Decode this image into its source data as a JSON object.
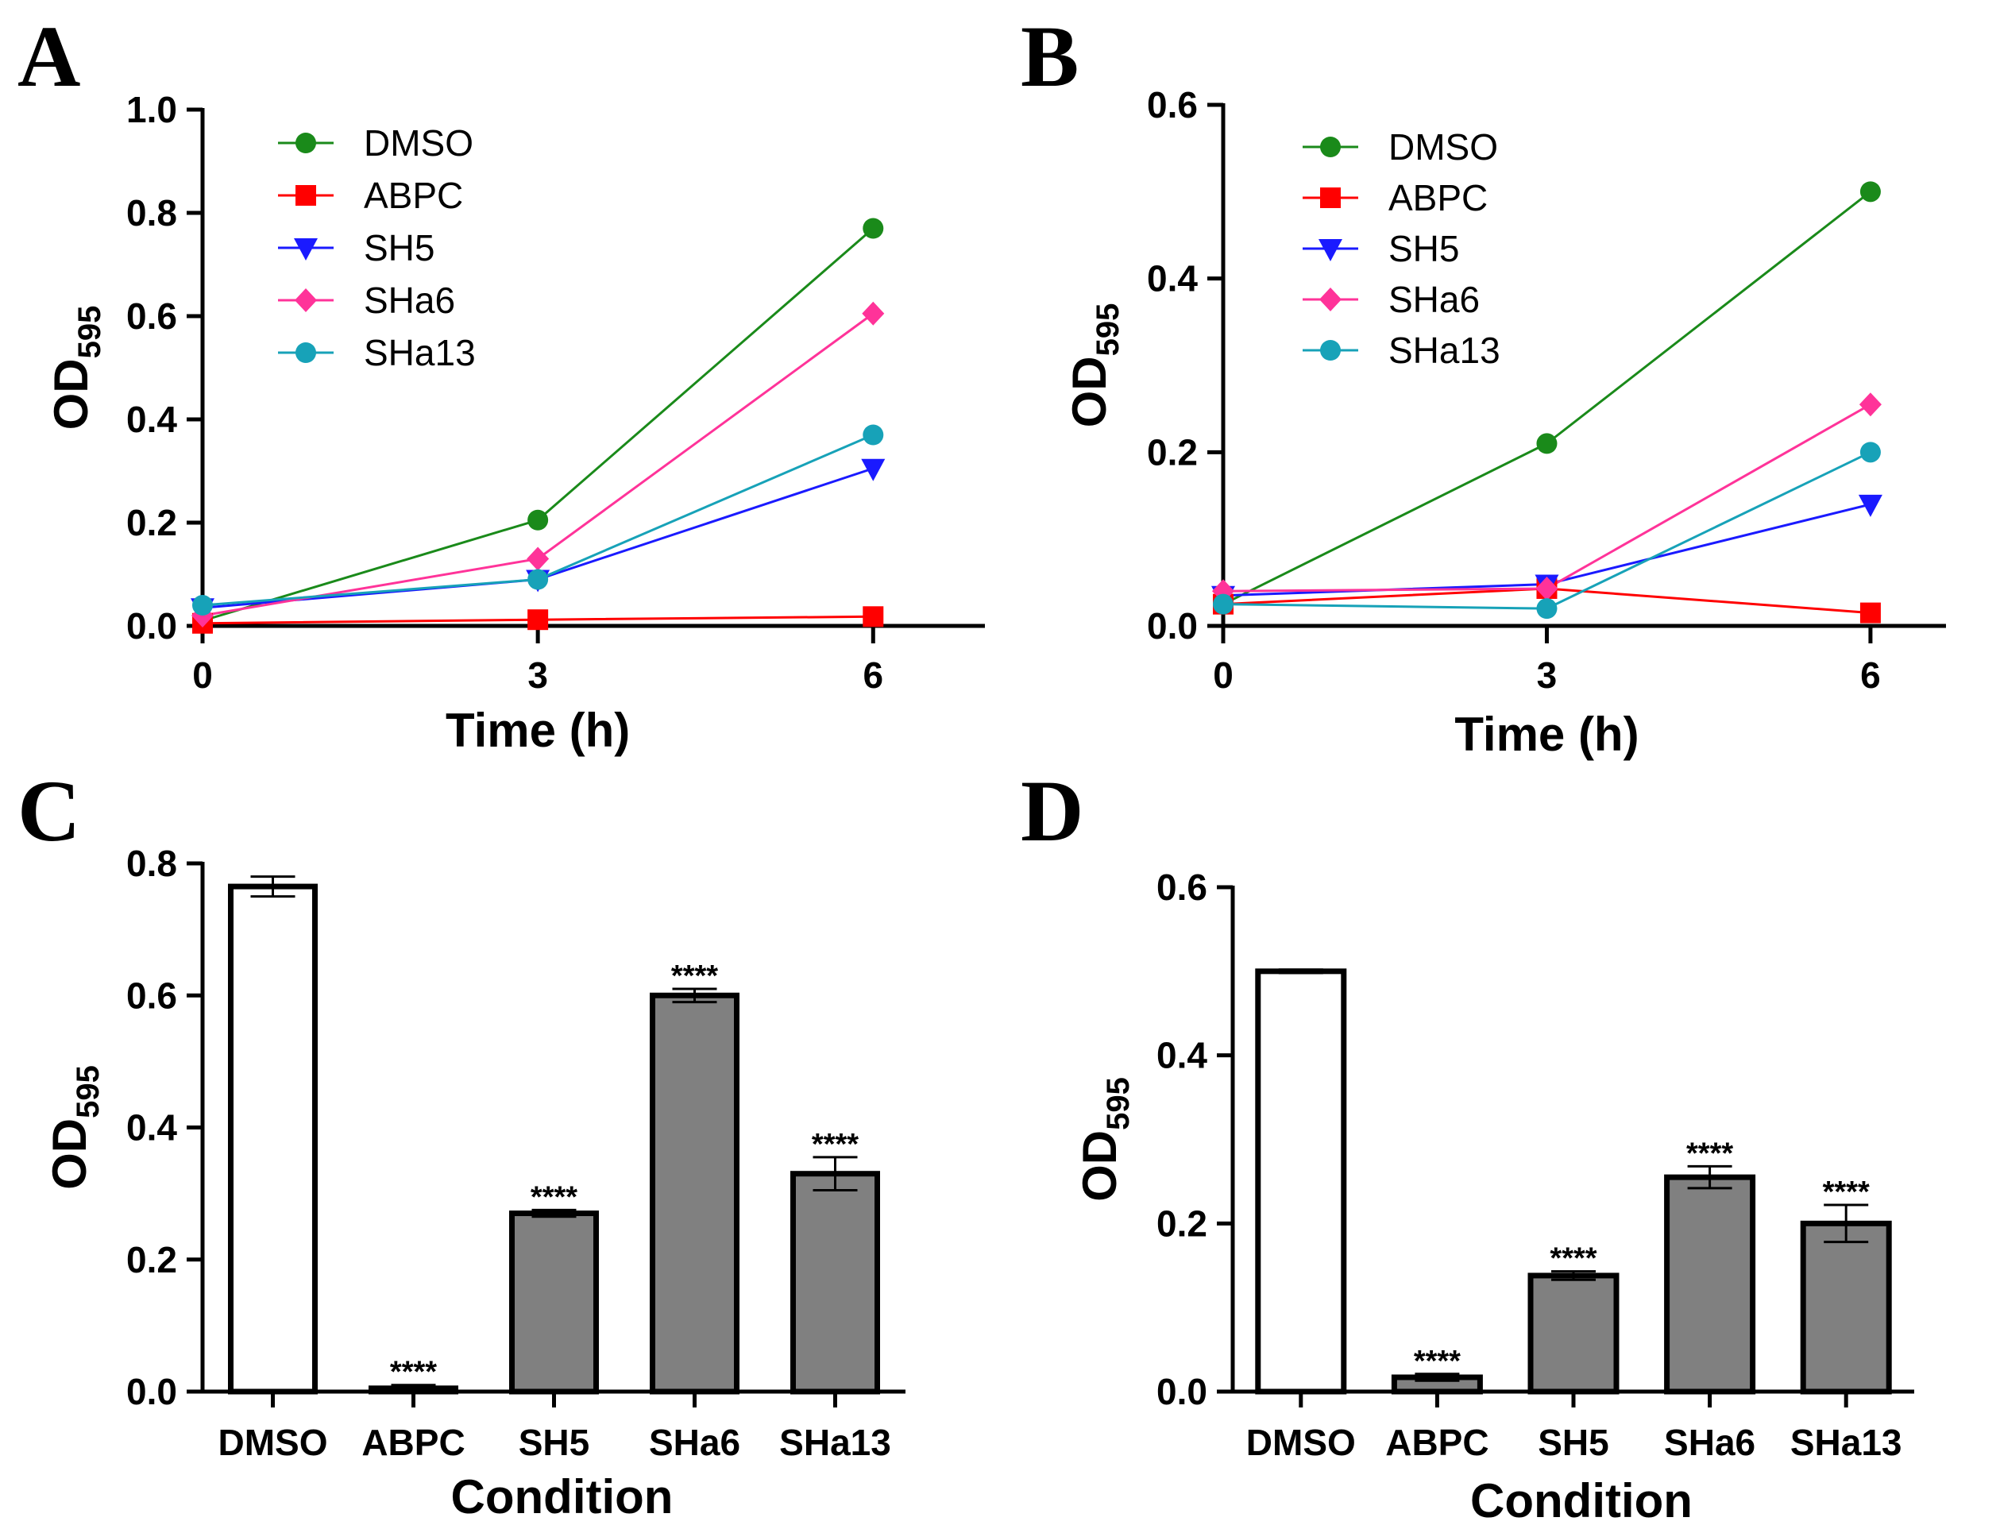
{
  "chart_data": [
    {
      "panel": "A",
      "type": "line",
      "x": [
        0,
        3,
        6
      ],
      "xticks": [
        "0",
        "3",
        "6"
      ],
      "xlim": [
        0,
        7
      ],
      "ylim": [
        0,
        1.0
      ],
      "yticks": [
        "0.0",
        "0.2",
        "0.4",
        "0.6",
        "0.8",
        "1.0"
      ],
      "xlabel": "Time (h)",
      "ylabel_main": "OD",
      "ylabel_sub": "595",
      "legend_position": "top-left",
      "series": [
        {
          "name": "DMSO",
          "values": [
            0.01,
            0.205,
            0.77
          ],
          "color": "#1a8a1a",
          "marker": "circle"
        },
        {
          "name": "ABPC",
          "values": [
            0.005,
            0.012,
            0.018
          ],
          "color": "#ff0000",
          "marker": "square"
        },
        {
          "name": "SH5",
          "values": [
            0.035,
            0.09,
            0.305
          ],
          "color": "#1a1aff",
          "marker": "triangle-down"
        },
        {
          "name": "SHa6",
          "values": [
            0.02,
            0.13,
            0.605
          ],
          "color": "#ff3399",
          "marker": "diamond"
        },
        {
          "name": "SHa13",
          "values": [
            0.04,
            0.09,
            0.37
          ],
          "color": "#17a2b8",
          "marker": "circle"
        }
      ]
    },
    {
      "panel": "B",
      "type": "line",
      "x": [
        0,
        3,
        6
      ],
      "xticks": [
        "0",
        "3",
        "6"
      ],
      "xlim": [
        0,
        6.7
      ],
      "ylim": [
        0,
        0.6
      ],
      "yticks": [
        "0.0",
        "0.2",
        "0.4",
        "0.6"
      ],
      "xlabel": "Time (h)",
      "ylabel_main": "OD",
      "ylabel_sub": "595",
      "legend_position": "top-left",
      "series": [
        {
          "name": "DMSO",
          "values": [
            0.025,
            0.21,
            0.5
          ],
          "color": "#1a8a1a",
          "marker": "circle"
        },
        {
          "name": "ABPC",
          "values": [
            0.025,
            0.043,
            0.015
          ],
          "color": "#ff0000",
          "marker": "square"
        },
        {
          "name": "SH5",
          "values": [
            0.035,
            0.048,
            0.14
          ],
          "color": "#1a1aff",
          "marker": "triangle-down"
        },
        {
          "name": "SHa6",
          "values": [
            0.04,
            0.043,
            0.255
          ],
          "color": "#ff3399",
          "marker": "diamond"
        },
        {
          "name": "SHa13",
          "values": [
            0.025,
            0.02,
            0.2
          ],
          "color": "#17a2b8",
          "marker": "circle"
        }
      ]
    },
    {
      "panel": "C",
      "type": "bar",
      "categories": [
        "DMSO",
        "ABPC",
        "SH5",
        "SHa6",
        "SHa13"
      ],
      "values": [
        0.765,
        0.005,
        0.27,
        0.6,
        0.33
      ],
      "errors": [
        0.015,
        0.005,
        0.005,
        0.01,
        0.025
      ],
      "significance": [
        "",
        "****",
        "****",
        "****",
        "****"
      ],
      "fills": [
        "#ffffff",
        "#808080",
        "#808080",
        "#808080",
        "#808080"
      ],
      "ylim": [
        0,
        0.8
      ],
      "yticks": [
        "0.0",
        "0.2",
        "0.4",
        "0.6",
        "0.8"
      ],
      "xlabel": "Condition",
      "ylabel_main": "OD",
      "ylabel_sub": "595"
    },
    {
      "panel": "D",
      "type": "bar",
      "categories": [
        "DMSO",
        "ABPC",
        "SH5",
        "SHa6",
        "SHa13"
      ],
      "values": [
        0.5,
        0.017,
        0.138,
        0.255,
        0.2
      ],
      "errors": [
        0.002,
        0.004,
        0.005,
        0.013,
        0.022
      ],
      "significance": [
        "",
        "****",
        "****",
        "****",
        "****"
      ],
      "fills": [
        "#ffffff",
        "#808080",
        "#808080",
        "#808080",
        "#808080"
      ],
      "ylim": [
        0,
        0.6
      ],
      "yticks": [
        "0.0",
        "0.2",
        "0.4",
        "0.6"
      ],
      "xlabel": "Condition",
      "ylabel_main": "OD",
      "ylabel_sub": "595"
    }
  ]
}
